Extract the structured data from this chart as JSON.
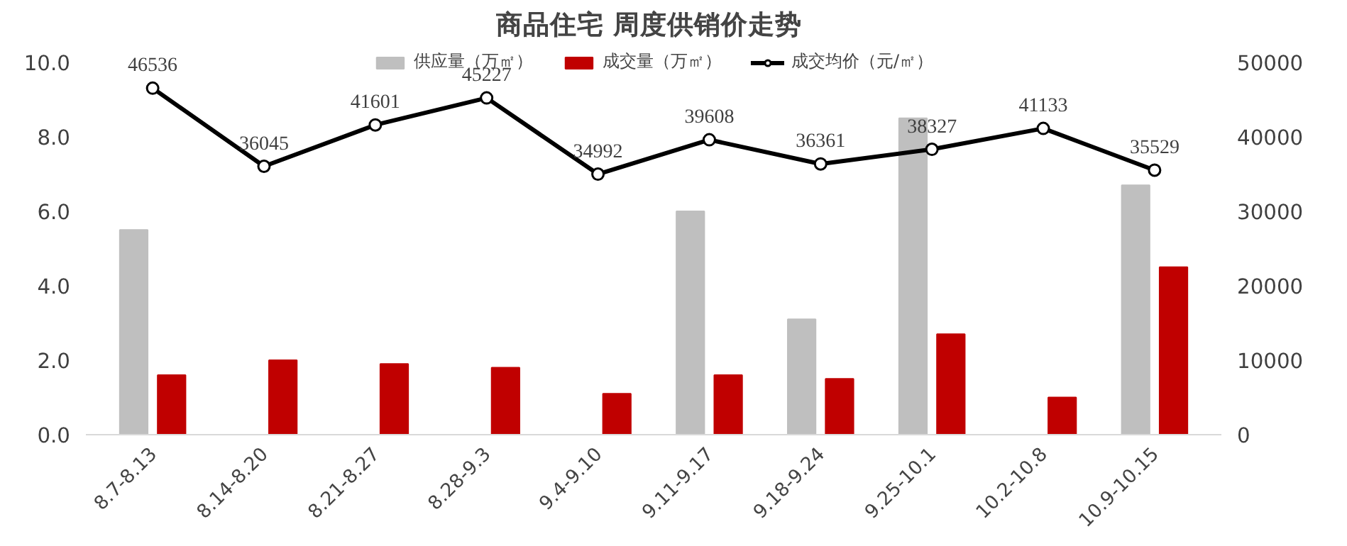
{
  "chart_data": {
    "type": "bar",
    "title": "商品住宅  周度供销价走势",
    "categories": [
      "8.7-8.13",
      "8.14-8.20",
      "8.21-8.27",
      "8.28-9.3",
      "9.4-9.10",
      "9.11-9.17",
      "9.18-9.24",
      "9.25-10.1",
      "10.2-10.8",
      "10.9-10.15"
    ],
    "series": [
      {
        "name": "供应量（万㎡）",
        "color": "#bfbfbf",
        "values": [
          5.5,
          null,
          null,
          null,
          null,
          6.0,
          3.1,
          8.5,
          null,
          6.7
        ]
      },
      {
        "name": "成交量（万㎡）",
        "color": "#c00000",
        "values": [
          1.6,
          2.0,
          1.9,
          1.8,
          1.1,
          1.6,
          1.5,
          2.7,
          1.0,
          4.5
        ]
      },
      {
        "name": "成交均价（元/㎡）",
        "type": "line",
        "axis": "y2",
        "color": "#000000",
        "marker": "circle",
        "data_labels": true,
        "values": [
          46536,
          36045,
          41601,
          45227,
          34992,
          39608,
          36361,
          38327,
          41133,
          35529
        ]
      }
    ],
    "ylim": [
      0,
      10.4
    ],
    "yticks": [
      {
        "value": 0,
        "label": "0.0"
      },
      {
        "value": 2,
        "label": "2.0"
      },
      {
        "value": 4,
        "label": "4.0"
      },
      {
        "value": 6,
        "label": "6.0"
      },
      {
        "value": 8,
        "label": "8.0"
      },
      {
        "value": 10,
        "label": "10.0"
      }
    ],
    "y2lim": [
      0,
      52000
    ],
    "y2ticks": [
      0,
      10000,
      20000,
      30000,
      40000,
      50000
    ],
    "grid": false,
    "legend": "top"
  }
}
